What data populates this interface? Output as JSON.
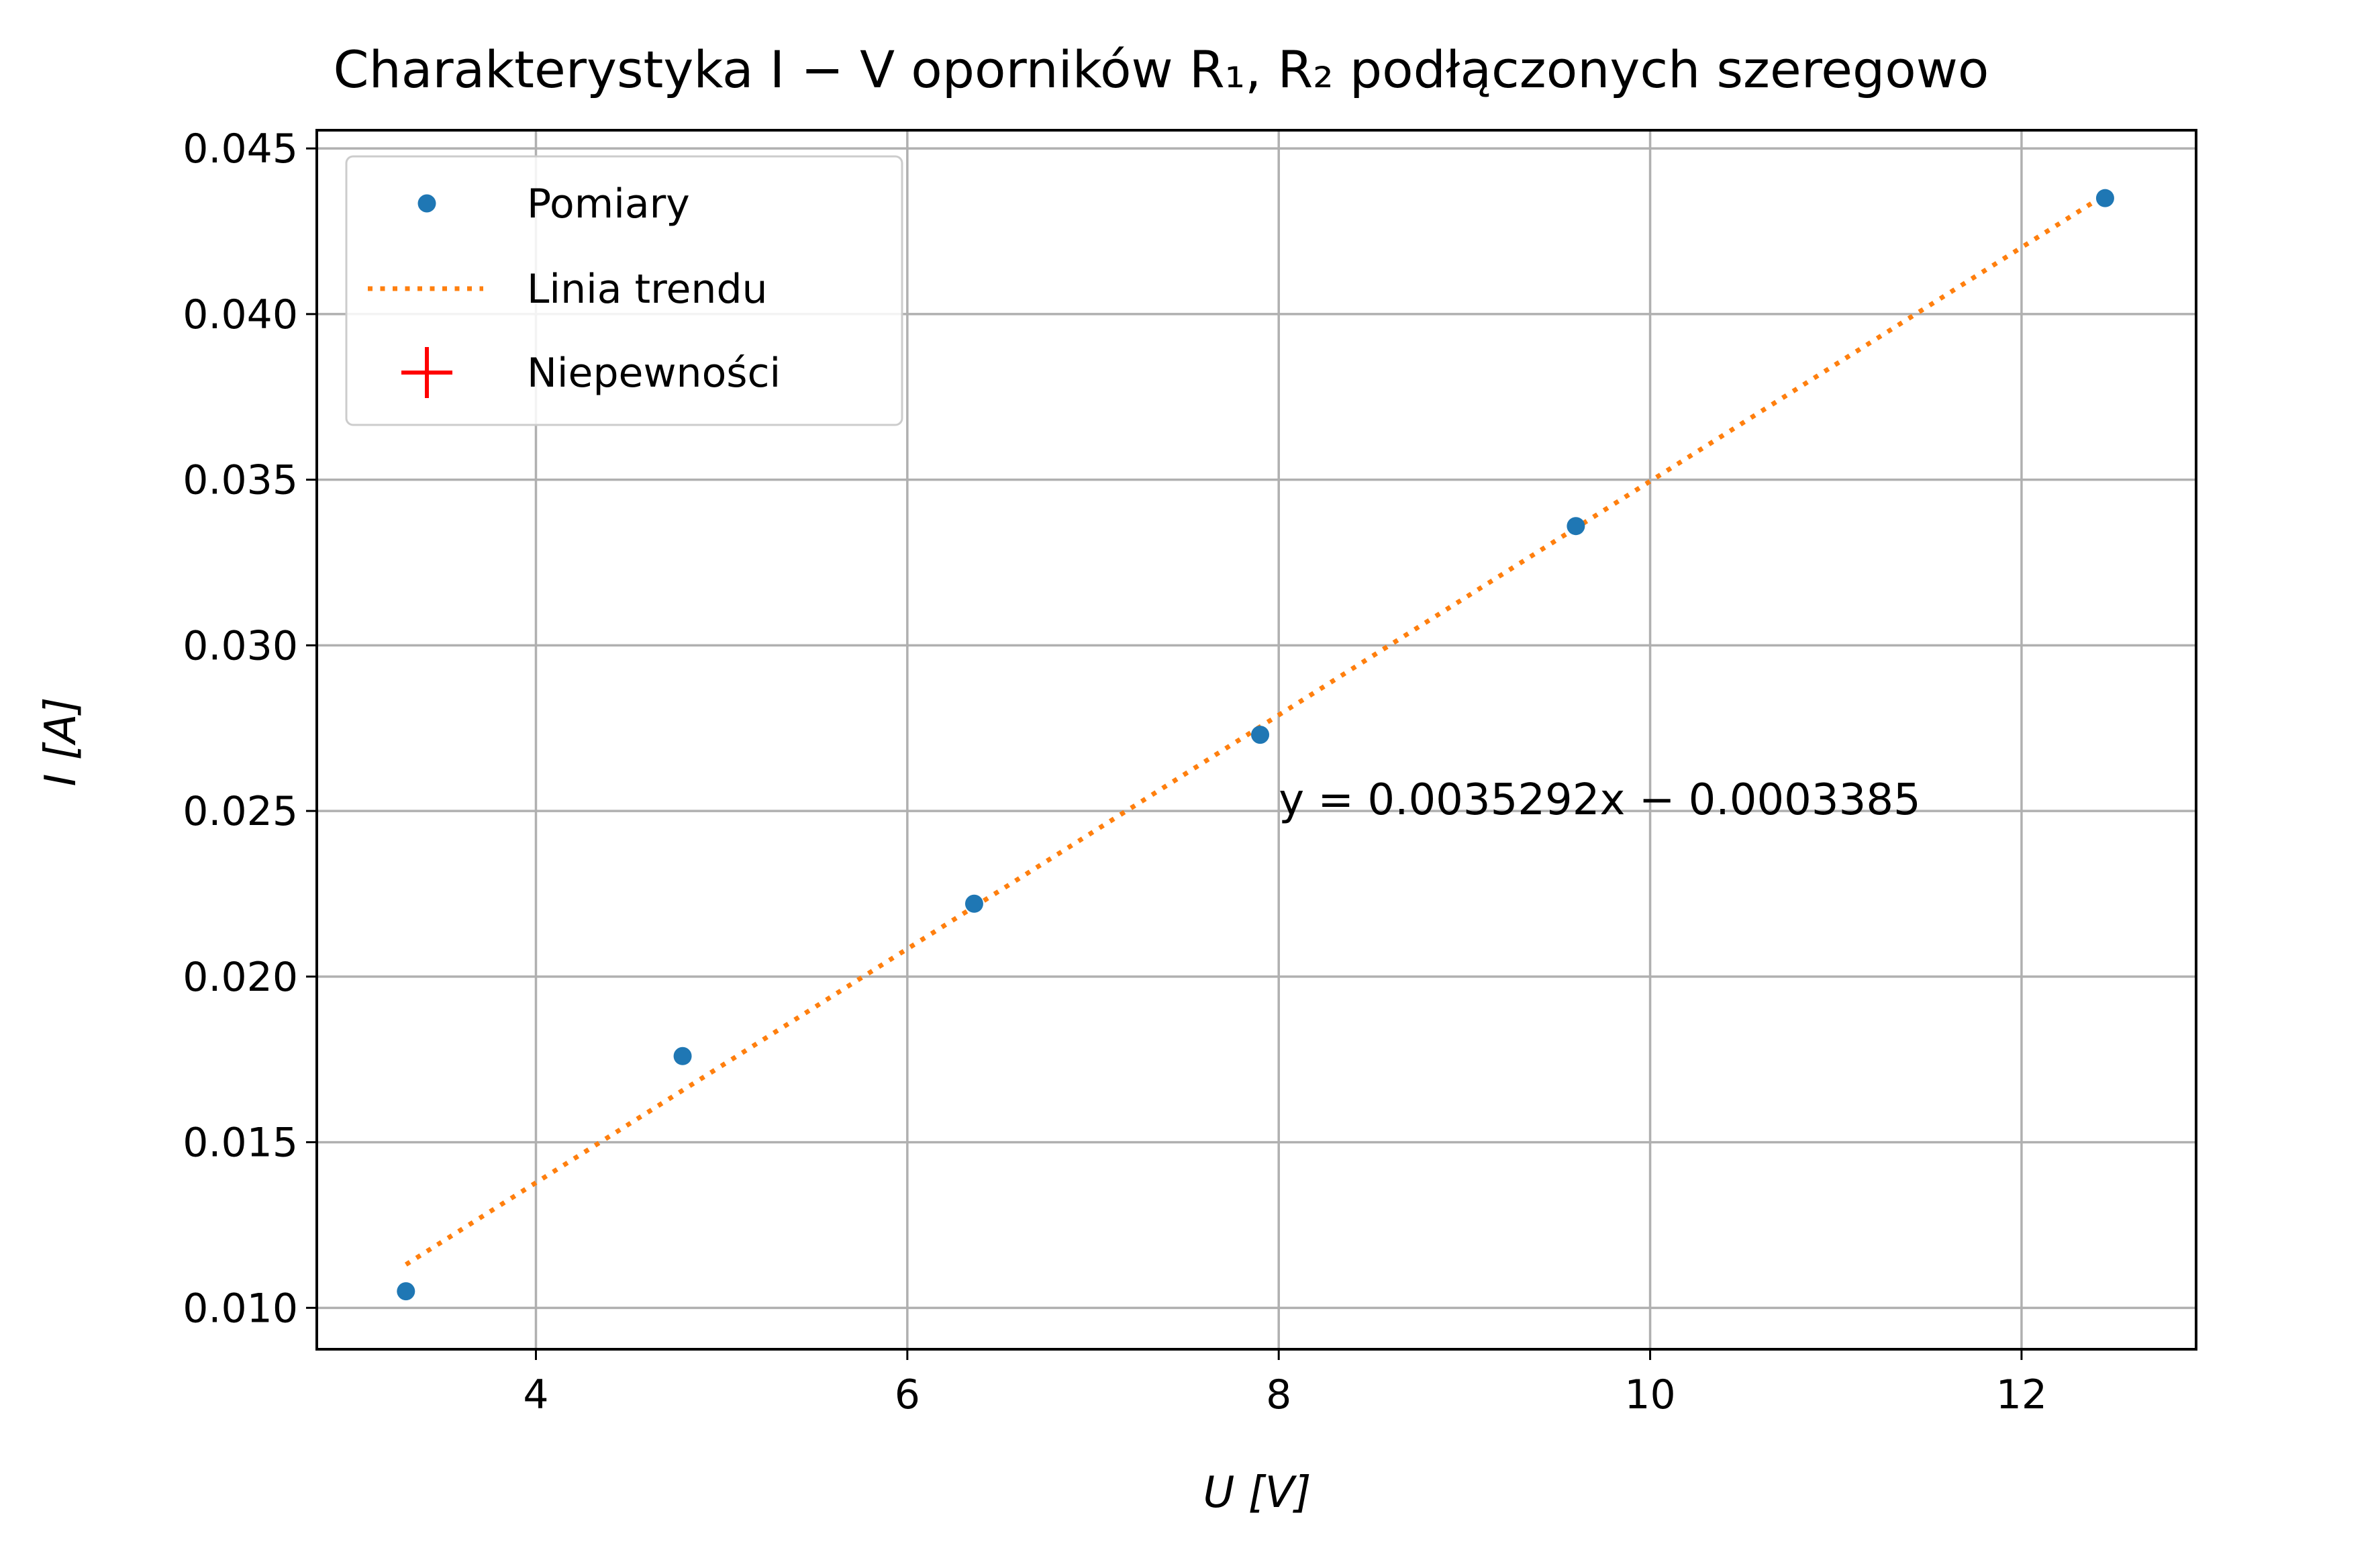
{
  "chart_data": {
    "type": "scatter",
    "title": "Charakterystyka I − V oporników R₁, R₂ podłączonych szeregowo",
    "xlabel": "U [V]",
    "ylabel": "I [A]",
    "xlim": [
      2.82,
      12.94
    ],
    "ylim": [
      0.00875,
      0.04555
    ],
    "grid": true,
    "legend_position": "top-left",
    "x_ticks": [
      4,
      6,
      8,
      10,
      12
    ],
    "y_ticks": [
      0.01,
      0.015,
      0.02,
      0.025,
      0.03,
      0.035,
      0.04,
      0.045
    ],
    "y_tick_decimals": 3,
    "series": [
      {
        "name": "Pomiary",
        "kind": "points",
        "color": "#1f77b4",
        "x": [
          3.3,
          4.79,
          6.36,
          7.9,
          9.6,
          12.45
        ],
        "y": [
          0.0105,
          0.0176,
          0.0222,
          0.0273,
          0.0336,
          0.0435
        ]
      },
      {
        "name": "Linia trendu",
        "kind": "dotted-line",
        "color": "#ff7f0e",
        "slope": 0.0035292,
        "intercept": -0.0003385,
        "x_range": [
          3.3,
          12.45
        ]
      },
      {
        "name": "Niepewności",
        "kind": "error-cross",
        "color": "#ff0000"
      }
    ],
    "annotations": [
      {
        "text": "y = 0.0035292x − 0.0003385",
        "x": 8.0,
        "y": 0.0249
      }
    ]
  }
}
